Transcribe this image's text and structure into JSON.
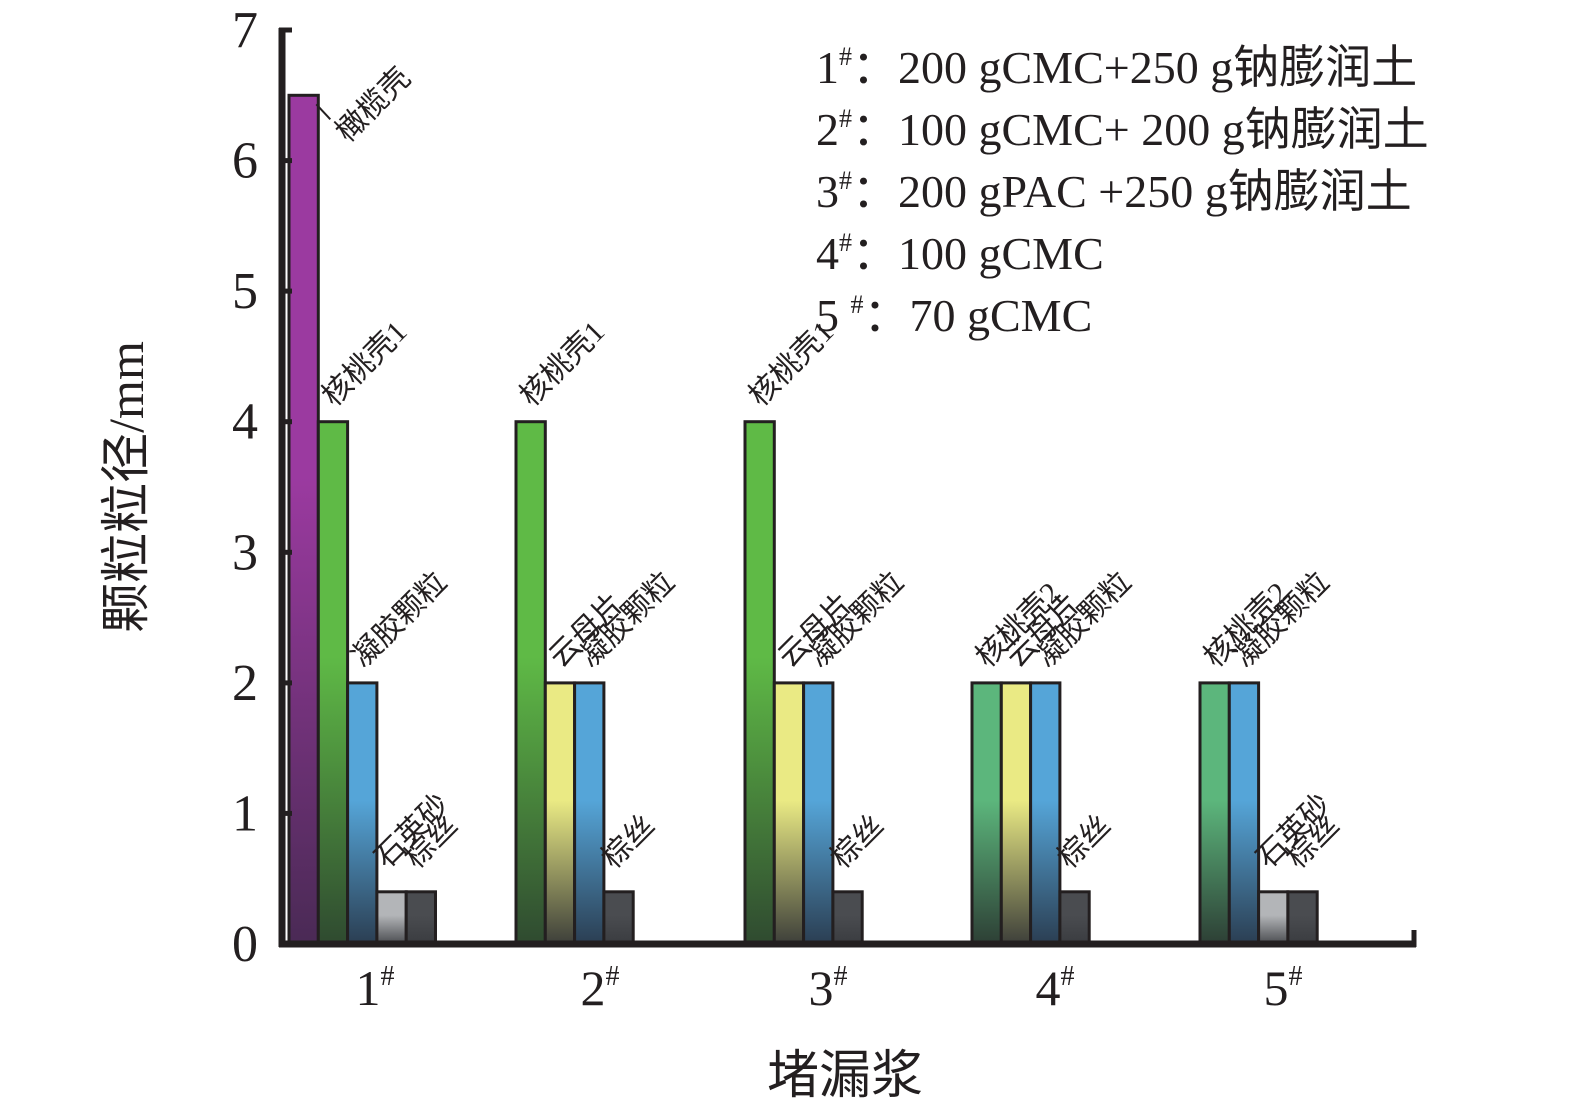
{
  "chart_data": {
    "type": "bar",
    "title": "",
    "xlabel": "堵漏浆",
    "ylabel": "颗粒粒径/mm",
    "ylim": [
      0,
      7
    ],
    "yticks": [
      "0",
      "1",
      "2",
      "3",
      "4",
      "5",
      "6",
      "7"
    ],
    "grid": false,
    "categories": [
      "1#",
      "2#",
      "3#",
      "4#",
      "5#"
    ],
    "category_labels": [
      {
        "num": "1",
        "sup": "#"
      },
      {
        "num": "2",
        "sup": "#"
      },
      {
        "num": "3",
        "sup": "#"
      },
      {
        "num": "4",
        "sup": "#"
      },
      {
        "num": "5",
        "sup": "#"
      }
    ],
    "materials": [
      {
        "key": "olive",
        "name": "橄榄壳",
        "color_top": "#9b3aa0",
        "color_bottom": "#4a2a55"
      },
      {
        "key": "walnut1",
        "name": "核桃壳1",
        "color_top": "#5fba46",
        "color_bottom": "#2f4a30"
      },
      {
        "key": "walnut2",
        "name": "核桃壳2",
        "color_top": "#5cb67c",
        "color_bottom": "#2d3f35"
      },
      {
        "key": "mica",
        "name": "云母片",
        "color_top": "#eaea84",
        "color_bottom": "#3d3f3a"
      },
      {
        "key": "gel",
        "name": "凝胶颗粒",
        "color_top": "#55a5d8",
        "color_bottom": "#2b3e52"
      },
      {
        "key": "quartz",
        "name": "石英砂",
        "color_top": "#b3b5b8",
        "color_bottom": "#4a4c50"
      },
      {
        "key": "palm",
        "name": "棕丝",
        "color_top": "#4a4c50",
        "color_bottom": "#3a3c40"
      }
    ],
    "groups": [
      {
        "category": "1#",
        "bars": [
          {
            "material": "olive",
            "value": 6.5
          },
          {
            "material": "walnut1",
            "value": 4
          },
          {
            "material": "gel",
            "value": 2
          },
          {
            "material": "quartz",
            "value": 0.4
          },
          {
            "material": "palm",
            "value": 0.4
          }
        ]
      },
      {
        "category": "2#",
        "bars": [
          {
            "material": "walnut1",
            "value": 4
          },
          {
            "material": "mica",
            "value": 2
          },
          {
            "material": "gel",
            "value": 2
          },
          {
            "material": "palm",
            "value": 0.4
          }
        ]
      },
      {
        "category": "3#",
        "bars": [
          {
            "material": "walnut1",
            "value": 4
          },
          {
            "material": "mica",
            "value": 2
          },
          {
            "material": "gel",
            "value": 2
          },
          {
            "material": "palm",
            "value": 0.4
          }
        ]
      },
      {
        "category": "4#",
        "bars": [
          {
            "material": "walnut2",
            "value": 2
          },
          {
            "material": "mica",
            "value": 2
          },
          {
            "material": "gel",
            "value": 2
          },
          {
            "material": "palm",
            "value": 0.4
          }
        ]
      },
      {
        "category": "5#",
        "bars": [
          {
            "material": "walnut2",
            "value": 2
          },
          {
            "material": "gel",
            "value": 2
          },
          {
            "material": "quartz",
            "value": 0.4
          },
          {
            "material": "palm",
            "value": 0.4
          }
        ]
      }
    ],
    "legend_placement": "top-right",
    "legend": [
      {
        "num": "1",
        "sup": "#",
        "text": "：200 gCMC+250 g钠膨润土"
      },
      {
        "num": "2",
        "sup": "#",
        "text": "：100 gCMC+ 200 g钠膨润土"
      },
      {
        "num": "3",
        "sup": "#",
        "text": "：200 gPAC +250 g钠膨润土"
      },
      {
        "num": "4",
        "sup": "#",
        "text": "：100 gCMC"
      },
      {
        "num": "5 ",
        "sup": "#",
        "text": "：70 gCMC"
      }
    ]
  }
}
